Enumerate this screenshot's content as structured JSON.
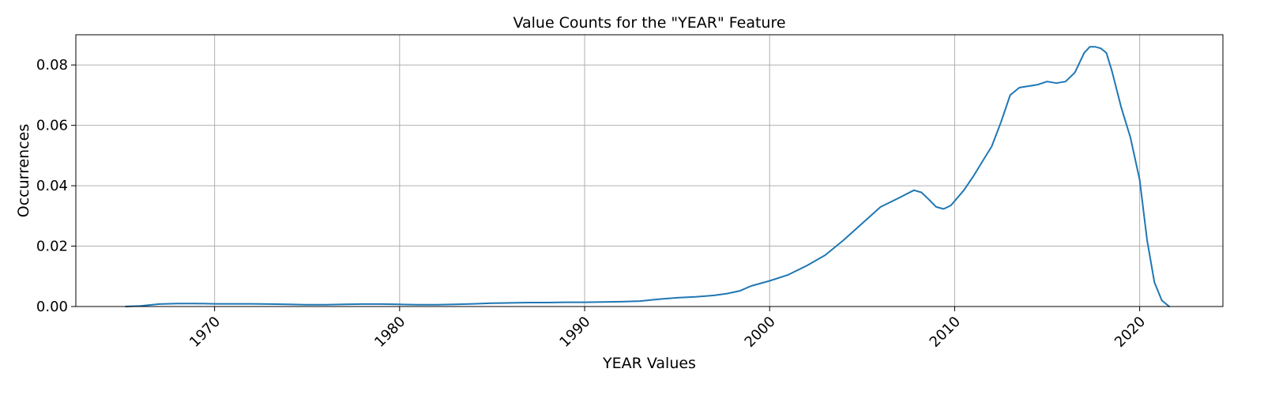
{
  "chart_data": {
    "type": "line",
    "title": "Value Counts for the \"YEAR\" Feature",
    "xlabel": "YEAR Values",
    "ylabel": "Occurrences",
    "xlim": [
      1962.5,
      2024.5
    ],
    "ylim": [
      0,
      0.09
    ],
    "xticks": [
      1970,
      1980,
      1990,
      2000,
      2010,
      2020
    ],
    "yticks": [
      0.0,
      0.02,
      0.04,
      0.06,
      0.08
    ],
    "xtick_labels": [
      "1970",
      "1980",
      "1990",
      "2000",
      "2010",
      "2020"
    ],
    "ytick_labels": [
      "0.00",
      "0.02",
      "0.04",
      "0.06",
      "0.08"
    ],
    "grid": true,
    "line_color": "#1f77b4",
    "series": [
      {
        "x": [
          1965.2,
          1966.0,
          1967.0,
          1968.0,
          1969.0,
          1970.0,
          1971.0,
          1972.0,
          1973.0,
          1974.0,
          1975.0,
          1976.0,
          1977.0,
          1978.0,
          1979.0,
          1980.0,
          1981.0,
          1982.0,
          1983.0,
          1984.0,
          1985.0,
          1986.0,
          1987.0,
          1988.0,
          1989.0,
          1990.0,
          1991.0,
          1992.0,
          1993.0,
          1994.0,
          1995.0,
          1996.0,
          1997.0,
          1997.7,
          1998.4,
          1999.0,
          2000.0,
          2001.0,
          2002.0,
          2003.0,
          2004.0,
          2005.0,
          2006.0,
          2007.0,
          2007.8,
          2008.2,
          2008.6,
          2009.0,
          2009.4,
          2009.8,
          2010.5,
          2011.0,
          2011.5,
          2012.0,
          2012.5,
          2013.0,
          2013.5,
          2014.0,
          2014.5,
          2015.0,
          2015.5,
          2016.0,
          2016.5,
          2017.0,
          2017.3,
          2017.6,
          2017.9,
          2018.2,
          2018.5,
          2019.0,
          2019.5,
          2020.0,
          2020.4,
          2020.8,
          2021.2,
          2021.6
        ],
        "y": [
          0.0,
          0.0002,
          0.0008,
          0.001,
          0.001,
          0.0009,
          0.0009,
          0.0009,
          0.0008,
          0.0007,
          0.0006,
          0.0006,
          0.0007,
          0.0008,
          0.0008,
          0.0007,
          0.0006,
          0.0006,
          0.0007,
          0.0009,
          0.0011,
          0.0012,
          0.0013,
          0.0013,
          0.0014,
          0.0014,
          0.0015,
          0.0016,
          0.0018,
          0.0024,
          0.0029,
          0.0032,
          0.0037,
          0.0043,
          0.0052,
          0.0068,
          0.0085,
          0.0105,
          0.0135,
          0.017,
          0.022,
          0.0275,
          0.033,
          0.036,
          0.0385,
          0.0378,
          0.0355,
          0.033,
          0.0323,
          0.0335,
          0.0385,
          0.043,
          0.048,
          0.053,
          0.061,
          0.07,
          0.0725,
          0.073,
          0.0735,
          0.0745,
          0.074,
          0.0745,
          0.0775,
          0.084,
          0.086,
          0.086,
          0.0855,
          0.084,
          0.078,
          0.066,
          0.056,
          0.042,
          0.022,
          0.008,
          0.002,
          0.0
        ]
      }
    ]
  }
}
